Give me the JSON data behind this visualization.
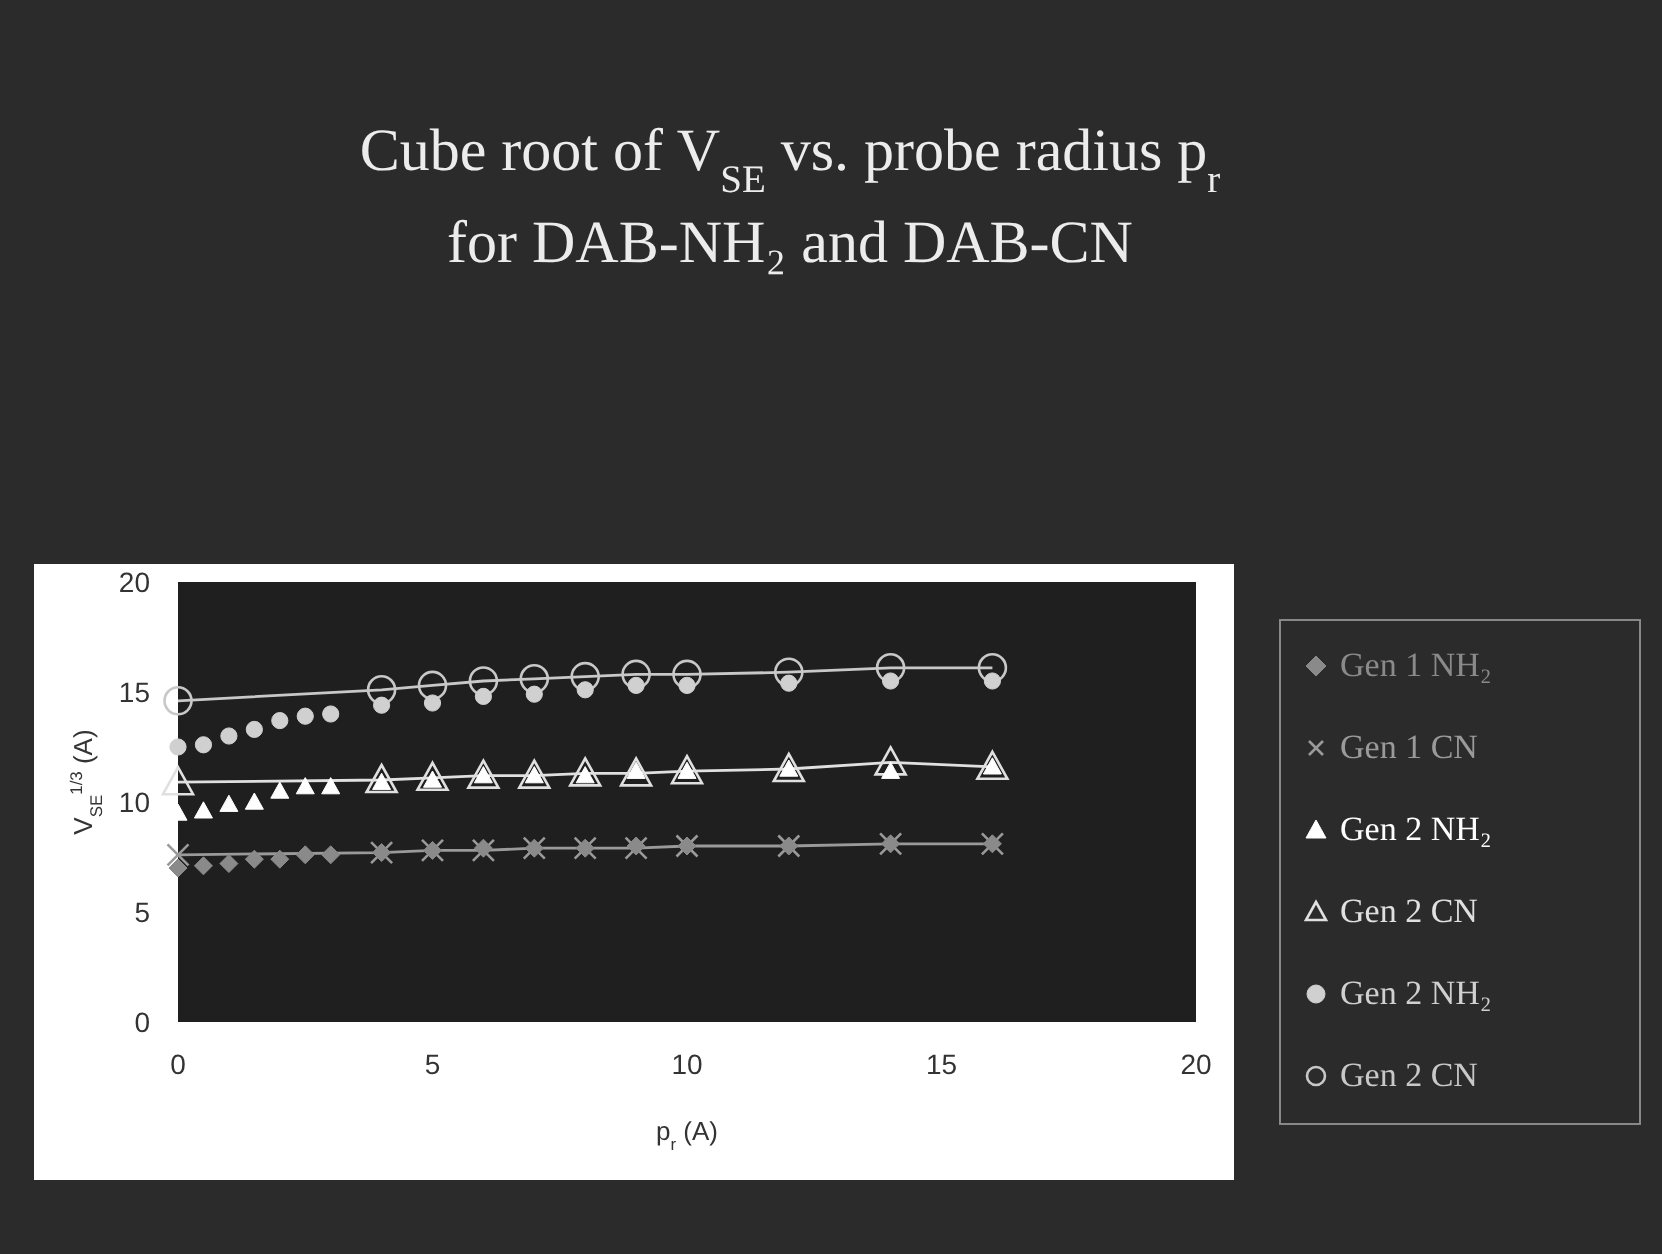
{
  "chart_data": {
    "type": "scatter",
    "title": "Cube root of V$_{SE}$ vs. probe radius p$_{r}$\nfor DAB-NH₂ and DAB-CN",
    "xlabel": "p$_{r}$ (A)",
    "ylabel": "V$_{SE}$$^{1/3}$ (A)",
    "xlim": [
      0,
      20
    ],
    "ylim": [
      0,
      20
    ],
    "xticks": [
      0,
      5,
      10,
      15,
      20
    ],
    "yticks": [
      0,
      5,
      10,
      15,
      20
    ],
    "legend": "right",
    "grid": false,
    "series": [
      {
        "name": "Gen 1 NH₂",
        "type": "scatter",
        "marker": "diamond",
        "color": "#8a8a8a",
        "x": [
          0,
          0.5,
          1,
          1.5,
          2,
          2.5,
          3,
          4,
          5,
          6,
          7,
          8,
          9,
          10,
          12,
          14,
          16
        ],
        "values": [
          7.0,
          7.1,
          7.2,
          7.4,
          7.4,
          7.6,
          7.6,
          7.7,
          7.8,
          7.9,
          7.9,
          7.9,
          8.0,
          8.0,
          8.0,
          8.1,
          8.1
        ]
      },
      {
        "name": "Gen 1 CN",
        "type": "line",
        "marker": "cross",
        "color": "#9a9a9a",
        "x": [
          0,
          4,
          5,
          6,
          7,
          8,
          9,
          10,
          12,
          14,
          16
        ],
        "values": [
          7.6,
          7.7,
          7.8,
          7.8,
          7.9,
          7.9,
          7.9,
          8.0,
          8.0,
          8.1,
          8.1
        ]
      },
      {
        "name": "Gen 2 NH₂",
        "type": "scatter",
        "marker": "triangle",
        "color": "#ffffff",
        "x": [
          0,
          0.5,
          1,
          1.5,
          2,
          2.5,
          3,
          4,
          5,
          6,
          7,
          8,
          9,
          10,
          12,
          14,
          16
        ],
        "values": [
          9.5,
          9.6,
          9.9,
          10.0,
          10.5,
          10.7,
          10.7,
          10.9,
          11.0,
          11.2,
          11.2,
          11.2,
          11.4,
          11.4,
          11.5,
          11.4,
          11.6
        ]
      },
      {
        "name": "Gen 2 CN",
        "type": "line",
        "marker": "triangle",
        "color": "#e0e0e0",
        "x": [
          0,
          4,
          5,
          6,
          7,
          8,
          9,
          10,
          12,
          14,
          16
        ],
        "values": [
          10.9,
          11.0,
          11.1,
          11.2,
          11.2,
          11.3,
          11.3,
          11.4,
          11.5,
          11.8,
          11.6
        ]
      },
      {
        "name": "Gen 2 NH₂",
        "type": "scatter",
        "marker": "circle",
        "color": "#d0d0d0",
        "x": [
          0,
          0.5,
          1,
          1.5,
          2,
          2.5,
          3,
          4,
          5,
          6,
          7,
          8,
          9,
          10,
          12,
          14,
          16
        ],
        "values": [
          12.5,
          12.6,
          13.0,
          13.3,
          13.7,
          13.9,
          14.0,
          14.4,
          14.5,
          14.8,
          14.9,
          15.1,
          15.3,
          15.3,
          15.4,
          15.5,
          15.5
        ]
      },
      {
        "name": "Gen 2 CN",
        "type": "line",
        "marker": "circle",
        "color": "#c8c8c8",
        "x": [
          0,
          4,
          5,
          6,
          7,
          8,
          9,
          10,
          12,
          14,
          16
        ],
        "values": [
          14.6,
          15.1,
          15.3,
          15.5,
          15.6,
          15.7,
          15.8,
          15.8,
          15.9,
          16.1,
          16.1
        ]
      }
    ]
  }
}
